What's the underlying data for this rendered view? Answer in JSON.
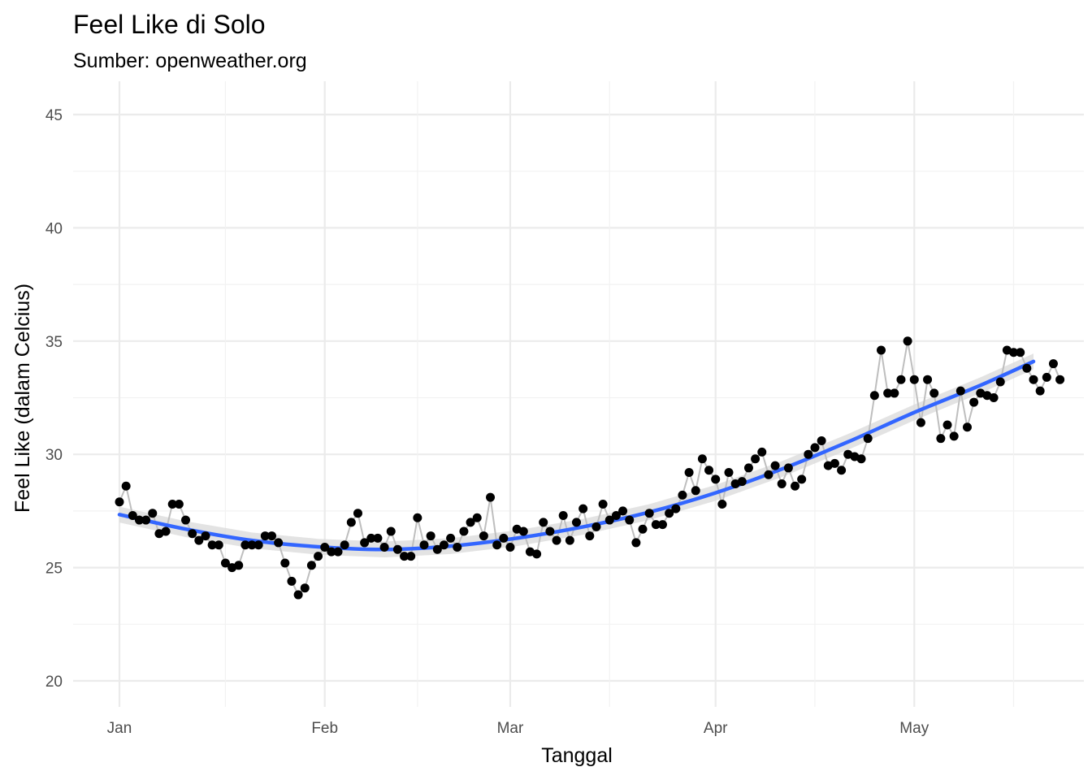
{
  "chart_data": {
    "type": "line",
    "title": "Feel Like di Solo",
    "subtitle": "Sumber: openweather.org",
    "xlabel": "Tanggal",
    "ylabel": "Feel Like (dalam Celcius)",
    "x_start": "2021-01-01",
    "x_end": "2021-05-19",
    "x_ticks": [
      {
        "date": "2021-01-01",
        "label": "Jan"
      },
      {
        "date": "2021-02-01",
        "label": "Feb"
      },
      {
        "date": "2021-03-01",
        "label": "Mar"
      },
      {
        "date": "2021-04-01",
        "label": "Apr"
      },
      {
        "date": "2021-05-01",
        "label": "May"
      }
    ],
    "x_minor_ticks": [
      "2021-01-17",
      "2021-02-15",
      "2021-03-16",
      "2021-04-16",
      "2021-05-16"
    ],
    "ylim": [
      20,
      45
    ],
    "y_ticks": [
      20,
      25,
      30,
      35,
      40,
      45
    ],
    "grid": true,
    "colors": {
      "points": "#000000",
      "line": "#bebebe",
      "smooth": "#3366ff",
      "band": "#d9d9d9",
      "grid": "#ebebeb"
    },
    "series": [
      {
        "values": [
          27.9,
          28.6,
          27.3,
          27.1,
          27.1,
          27.4,
          26.5,
          26.6,
          27.8,
          27.8,
          27.1,
          26.5,
          26.2,
          26.4,
          26.0,
          26.0,
          25.2,
          25.0,
          25.1,
          26.0,
          26.0,
          26.0,
          26.4,
          26.4,
          26.1,
          25.2,
          24.4,
          23.8,
          24.1,
          25.1,
          25.5,
          25.9,
          25.7,
          25.7,
          26.0,
          27.0,
          27.4,
          26.1,
          26.3,
          26.3,
          25.9,
          26.6,
          25.8,
          25.5,
          25.5,
          27.2,
          26.0,
          26.4,
          25.8,
          26.0,
          26.3,
          25.9,
          26.6,
          27.0,
          27.2,
          26.4,
          28.1,
          26.0,
          26.3,
          25.9,
          26.7,
          26.6,
          25.7,
          25.6,
          27.0,
          26.6,
          26.2,
          27.3,
          26.2,
          27.0,
          27.6,
          26.4,
          26.8,
          27.8,
          27.1,
          27.3,
          27.5,
          27.1,
          26.1,
          26.7,
          27.4,
          26.9,
          26.9,
          27.4,
          27.6,
          28.2,
          29.2,
          28.4,
          29.8,
          29.3,
          28.9,
          27.8,
          29.2,
          28.7,
          28.8,
          29.4,
          29.8,
          30.1,
          29.1,
          29.5,
          28.7,
          29.4,
          28.6,
          28.9,
          30.0,
          30.3,
          30.6,
          29.5,
          29.6,
          29.3,
          30.0,
          29.9,
          29.8,
          30.7,
          32.6,
          34.6,
          32.7,
          32.7,
          33.3,
          35.0,
          33.3,
          31.4,
          33.3,
          32.7,
          30.7,
          31.3,
          30.8,
          32.8,
          31.2,
          32.3,
          32.7,
          32.6,
          32.5,
          33.2,
          34.6,
          34.5,
          34.5,
          33.8,
          33.3,
          32.8,
          33.4,
          34.0,
          33.3
        ]
      }
    ],
    "smooth": {
      "points": [
        [
          0,
          27.34
        ],
        [
          10,
          26.7
        ],
        [
          20,
          26.2
        ],
        [
          30,
          25.92
        ],
        [
          40,
          25.8
        ],
        [
          50,
          25.95
        ],
        [
          60,
          26.3
        ],
        [
          70,
          26.8
        ],
        [
          80,
          27.45
        ],
        [
          90,
          28.3
        ],
        [
          100,
          29.35
        ],
        [
          110,
          30.55
        ],
        [
          120,
          31.85
        ],
        [
          130,
          33.05
        ],
        [
          138,
          34.1
        ]
      ],
      "band": 0.35
    }
  }
}
